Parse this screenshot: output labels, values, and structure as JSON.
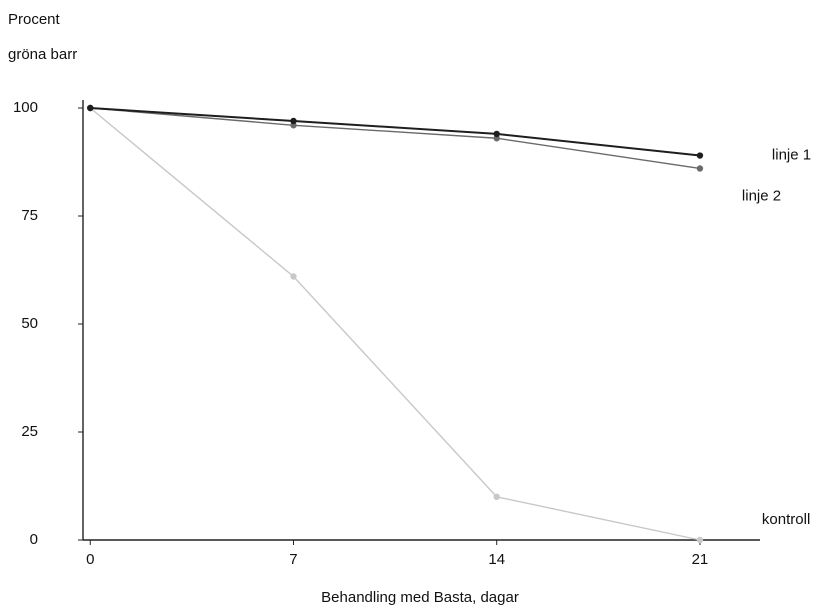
{
  "chart_data": {
    "type": "line",
    "y_label": [
      "Procent",
      "gröna barr"
    ],
    "x_label": "Behandling med Basta, dagar",
    "x": [
      0,
      7,
      14,
      21
    ],
    "xlim": [
      -0.25,
      23
    ],
    "xticks": [
      0,
      7,
      14,
      21
    ],
    "ylim": [
      0,
      100
    ],
    "yticks": [
      0,
      25,
      50,
      75,
      100
    ],
    "grid": false,
    "series": [
      {
        "name": "linje 1",
        "color": "#1e1e1e",
        "values": [
          100,
          97,
          94,
          89
        ]
      },
      {
        "name": "linje 2",
        "color": "#6a6a6a",
        "values": [
          100,
          96,
          93,
          86
        ]
      },
      {
        "name": "kontroll",
        "color": "#c8c8c8",
        "values": [
          100,
          61,
          10,
          0
        ]
      }
    ]
  }
}
